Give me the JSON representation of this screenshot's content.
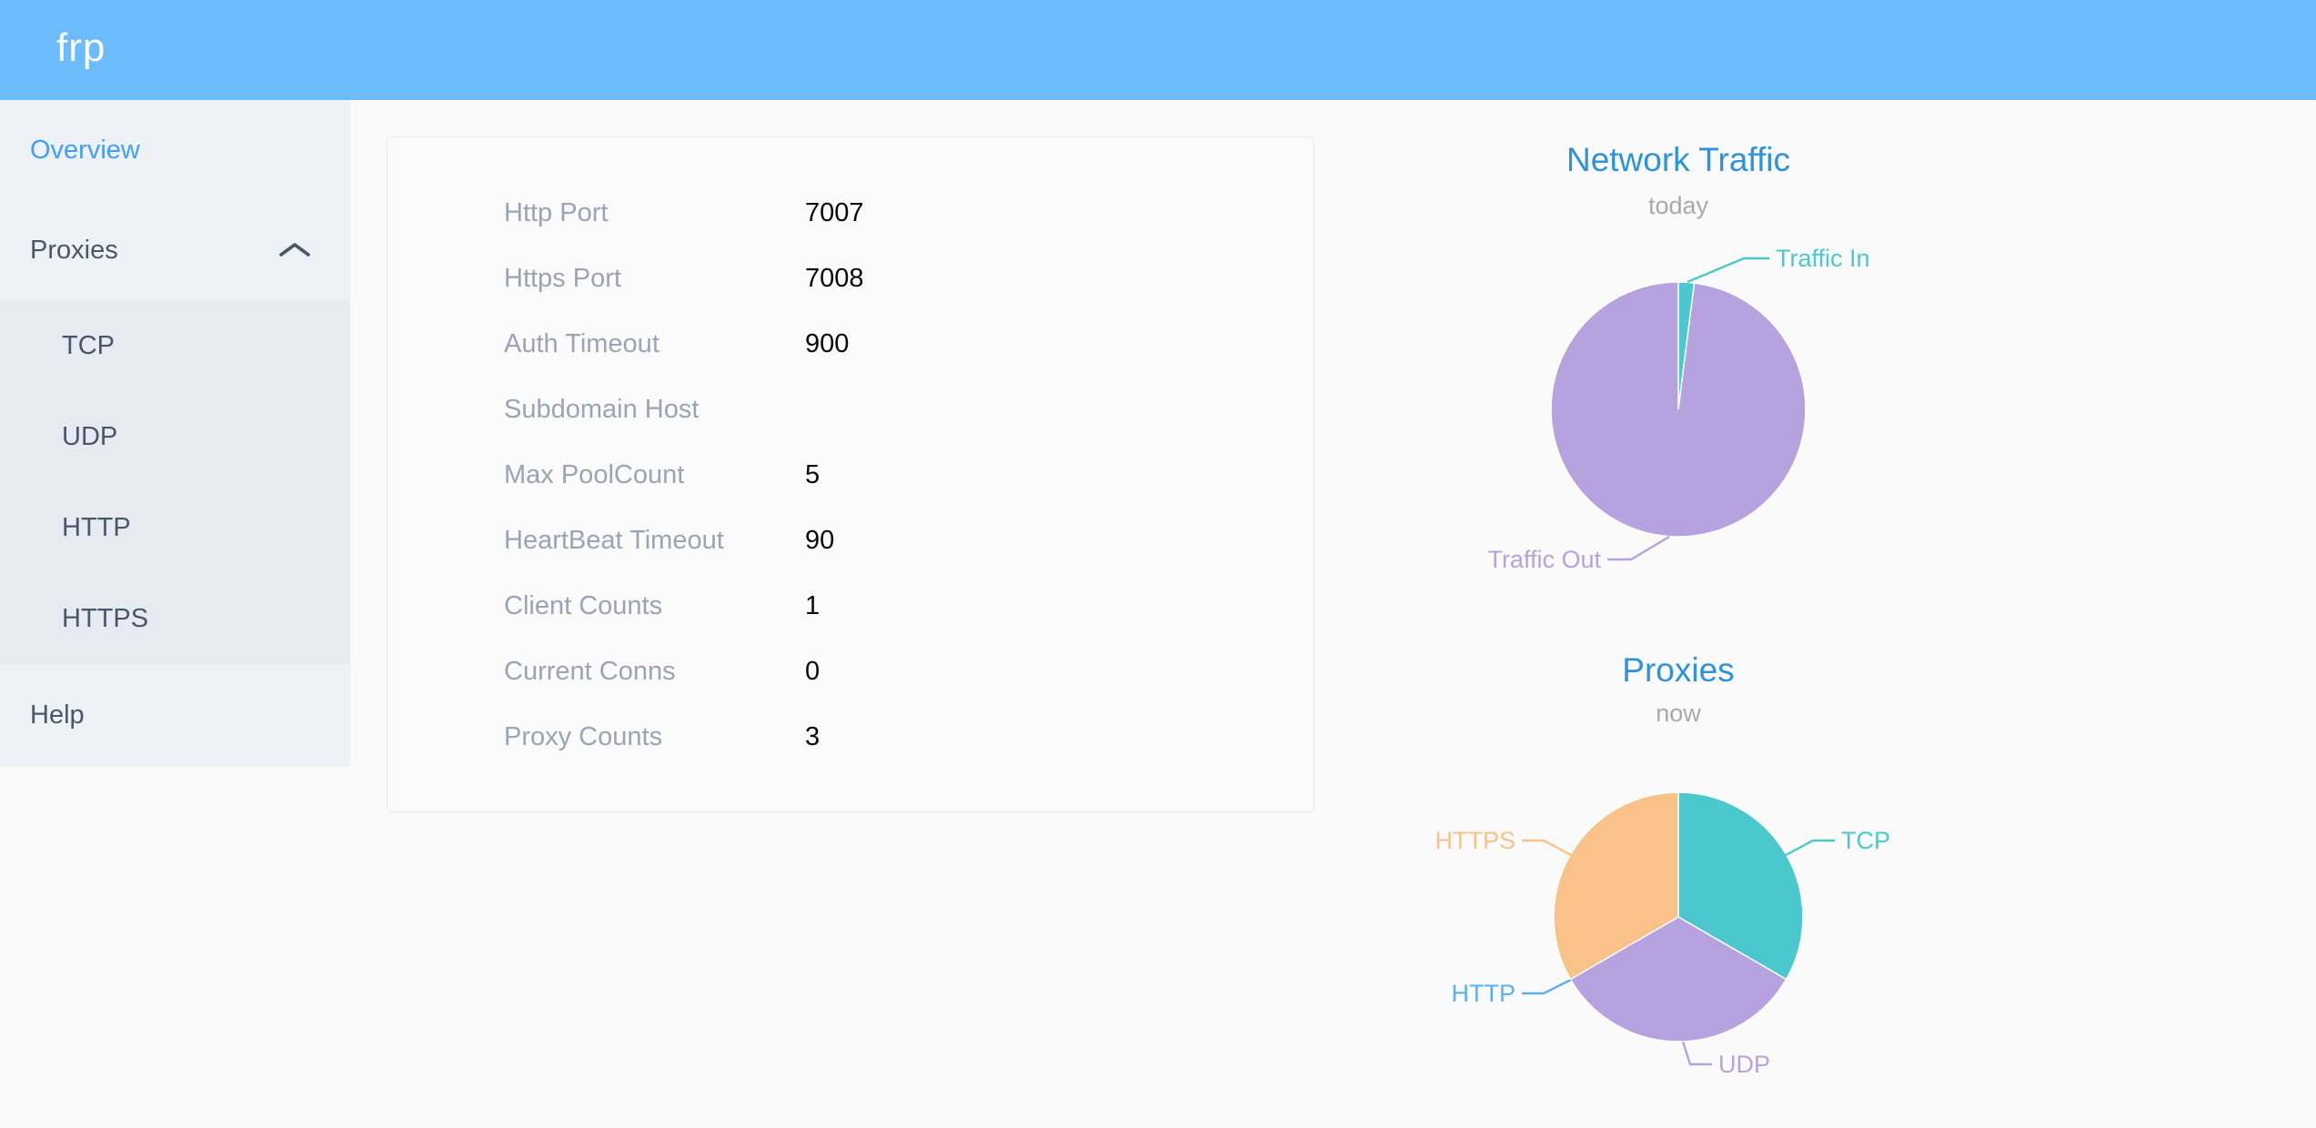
{
  "header": {
    "logo": "frp"
  },
  "sidebar": {
    "items": [
      {
        "label": "Overview",
        "active": true
      },
      {
        "label": "Proxies",
        "expanded": true,
        "icon": "chevron-up-icon",
        "children": [
          "TCP",
          "UDP",
          "HTTP",
          "HTTPS"
        ]
      },
      {
        "label": "Help"
      }
    ]
  },
  "server_info": {
    "rows": [
      {
        "label": "Http Port",
        "value": "7007"
      },
      {
        "label": "Https Port",
        "value": "7008"
      },
      {
        "label": "Auth Timeout",
        "value": "900"
      },
      {
        "label": "Subdomain Host",
        "value": ""
      },
      {
        "label": "Max PoolCount",
        "value": "5"
      },
      {
        "label": "HeartBeat Timeout",
        "value": "90"
      },
      {
        "label": "Client Counts",
        "value": "1"
      },
      {
        "label": "Current Conns",
        "value": "0"
      },
      {
        "label": "Proxy Counts",
        "value": "3"
      }
    ]
  },
  "chart_data": [
    {
      "type": "pie",
      "title": "Network Traffic",
      "subtitle": "today",
      "legend_position": "callout-labels",
      "slices": [
        {
          "label": "Traffic In",
          "percent": 2,
          "color": "#4BC8CE"
        },
        {
          "label": "Traffic Out",
          "percent": 98,
          "color": "#B6A2DE"
        }
      ]
    },
    {
      "type": "pie",
      "title": "Proxies",
      "subtitle": "now",
      "legend_position": "callout-labels",
      "slices": [
        {
          "label": "TCP",
          "value": 1,
          "color": "#4BC8CE"
        },
        {
          "label": "UDP",
          "value": 1,
          "color": "#B6A2DE"
        },
        {
          "label": "HTTP",
          "value": 0,
          "color": "#5AB1EF"
        },
        {
          "label": "HTTPS",
          "value": 1,
          "color": "#FAC288"
        }
      ]
    }
  ],
  "colors": {
    "header_blue": "#6CBBFB",
    "active_menu_blue": "#409EFF",
    "menu_text": "#48576A",
    "sidebar_bg": "#EEF1F6",
    "submenu_bg": "#E7EAF1",
    "chart_title_blue": "#2E93DB",
    "subtitle_gray": "#A9A9A9",
    "label_gray": "#9AA4B6",
    "pie_teal": "#4BC8CE",
    "pie_purple": "#B6A2DE",
    "pie_blue": "#5AB1EF",
    "pie_orange": "#FAC288"
  }
}
